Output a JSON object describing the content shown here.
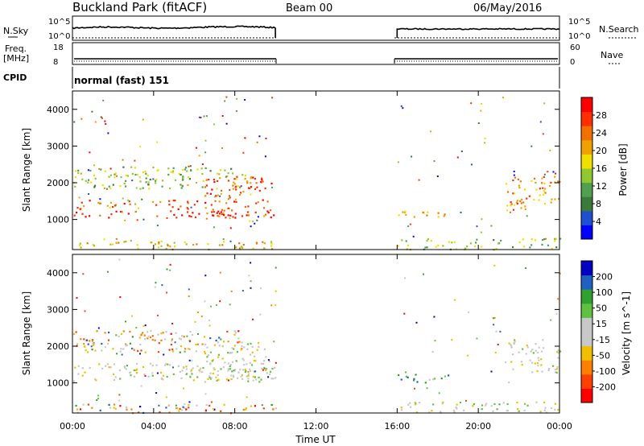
{
  "header": {
    "site": "Buckland Park (fitACF)",
    "beam": "Beam 00",
    "date": "06/May/2016"
  },
  "strip_labels": {
    "nsky": "N.Sky",
    "nsky_ticks": [
      "10^5",
      "10^0"
    ],
    "nsearch": "N.Search",
    "nsearch_ticks": [
      "10^5",
      "10^0"
    ],
    "freq": "Freq.",
    "freq_unit": "[MHz]",
    "freq_ticks": [
      "18",
      "8"
    ],
    "nave": "Nave",
    "nave_ticks": [
      "60",
      "0"
    ],
    "cpid": "CPID",
    "cpid_value": "normal (fast) 151"
  },
  "chart_data": [
    {
      "type": "heatmap",
      "name": "power",
      "ylabel": "Slant Range [km]",
      "xlabel": "Time UT",
      "x_ticks": [
        "00:00",
        "04:00",
        "08:00",
        "12:00",
        "16:00",
        "20:00",
        "00:00"
      ],
      "y_ticks": [
        "1000",
        "2000",
        "3000",
        "4000"
      ],
      "xlim_hours": [
        0,
        24
      ],
      "ylim_km": [
        180,
        4500
      ],
      "data_gap_hours": [
        10,
        16
      ],
      "colorbar": {
        "label": "Power [dB]",
        "ticks": [
          "28",
          "24",
          "20",
          "16",
          "12",
          "8",
          "4"
        ],
        "colors": [
          "#0000ff",
          "#2050d0",
          "#3a7a3a",
          "#50a050",
          "#90c830",
          "#f0e000",
          "#f0a000",
          "#f07000",
          "#ff3000",
          "#ff0000"
        ]
      },
      "bands": [
        {
          "t0": 0,
          "t1": 10,
          "r0": 1050,
          "r1": 1250,
          "level": 0.95
        },
        {
          "t0": 0,
          "t1": 6.5,
          "r0": 1300,
          "r1": 1550,
          "level": 0.75
        },
        {
          "t0": 0,
          "t1": 8.5,
          "r0": 1850,
          "r1": 2450,
          "level": 0.45
        },
        {
          "t0": 6.5,
          "t1": 9.9,
          "r0": 1100,
          "r1": 2200,
          "level": 0.8
        },
        {
          "t0": 0,
          "t1": 10,
          "r0": 200,
          "r1": 450,
          "level": 0.6
        },
        {
          "t0": 16,
          "t1": 18.5,
          "r0": 1000,
          "r1": 1250,
          "level": 0.65
        },
        {
          "t0": 16,
          "t1": 24,
          "r0": 200,
          "r1": 500,
          "level": 0.45
        },
        {
          "t0": 21.3,
          "t1": 24,
          "r0": 1300,
          "r1": 2200,
          "level": 0.7
        }
      ]
    },
    {
      "type": "heatmap",
      "name": "velocity",
      "ylabel": "Slant Range [km]",
      "xlabel": "Time UT",
      "x_ticks": [
        "00:00",
        "04:00",
        "08:00",
        "12:00",
        "16:00",
        "20:00",
        "00:00"
      ],
      "y_ticks": [
        "1000",
        "2000",
        "3000",
        "4000"
      ],
      "xlim_hours": [
        0,
        24
      ],
      "ylim_km": [
        180,
        4500
      ],
      "data_gap_hours": [
        10,
        16
      ],
      "colorbar": {
        "label": "Velocity [m s^-1]",
        "ticks": [
          "200",
          "100",
          "50",
          "15",
          "-15",
          "-50",
          "-100",
          "-200"
        ],
        "colors": [
          "#ff0000",
          "#ff4000",
          "#ff8000",
          "#f0c000",
          "#c8c8c8",
          "#c8c8c8",
          "#60c040",
          "#30a030",
          "#2060c0",
          "#0000c0"
        ]
      },
      "bands": [
        {
          "t0": 0,
          "t1": 10,
          "r0": 1050,
          "r1": 1550,
          "level": 0.5
        },
        {
          "t0": 0,
          "t1": 8.5,
          "r0": 1850,
          "r1": 2450,
          "level": 0.35
        },
        {
          "t0": 6.5,
          "t1": 9.9,
          "r0": 1100,
          "r1": 2200,
          "level": 0.5
        },
        {
          "t0": 0,
          "t1": 10,
          "r0": 200,
          "r1": 450,
          "level": 0.3
        },
        {
          "t0": 16,
          "t1": 18.5,
          "r0": 1000,
          "r1": 1250,
          "level": 0.7
        },
        {
          "t0": 16,
          "t1": 24,
          "r0": 200,
          "r1": 500,
          "level": 0.5
        },
        {
          "t0": 21.3,
          "t1": 24,
          "r0": 1300,
          "r1": 2200,
          "level": 0.5
        }
      ]
    }
  ]
}
